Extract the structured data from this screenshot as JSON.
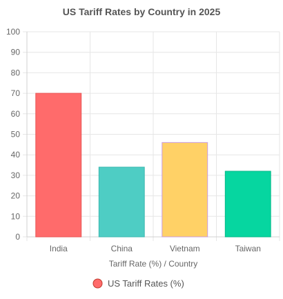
{
  "chart_data": {
    "type": "bar",
    "title": "US Tariff Rates by Country in 2025",
    "categories": [
      "India",
      "China",
      "Vietnam",
      "Taiwan"
    ],
    "series": [
      {
        "name": "US Tariff Rates (%)",
        "values": [
          70,
          34,
          46,
          32
        ]
      }
    ],
    "xlabel": "Tariff Rate (%) / Country",
    "ylabel": "",
    "ylim": [
      0,
      100
    ],
    "yticks": [
      0,
      10,
      20,
      30,
      40,
      50,
      60,
      70,
      80,
      90,
      100
    ],
    "grid": true,
    "legend_position": "bottom",
    "colors": {
      "fills": [
        "#ff6b6b",
        "#4ecdc4",
        "#ffd166",
        "#06d6a0"
      ],
      "borders": [
        "#e85555",
        "#3db8b0",
        "#c99be0",
        "#05b888"
      ],
      "legend_fill": "#ff6b6b",
      "legend_border": "#c0392b"
    }
  }
}
